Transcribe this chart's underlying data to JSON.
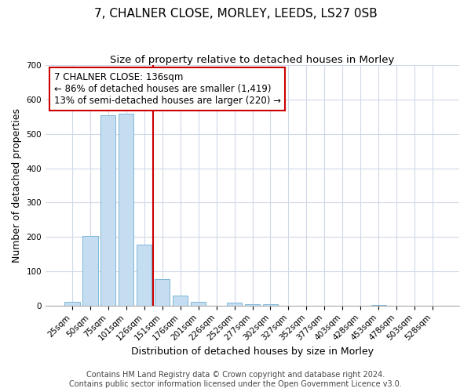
{
  "title": "7, CHALNER CLOSE, MORLEY, LEEDS, LS27 0SB",
  "subtitle": "Size of property relative to detached houses in Morley",
  "xlabel": "Distribution of detached houses by size in Morley",
  "ylabel": "Number of detached properties",
  "bar_labels": [
    "25sqm",
    "50sqm",
    "75sqm",
    "101sqm",
    "126sqm",
    "151sqm",
    "176sqm",
    "201sqm",
    "226sqm",
    "252sqm",
    "277sqm",
    "302sqm",
    "327sqm",
    "352sqm",
    "377sqm",
    "403sqm",
    "428sqm",
    "453sqm",
    "478sqm",
    "503sqm",
    "528sqm"
  ],
  "bar_values": [
    12,
    203,
    553,
    558,
    178,
    77,
    29,
    10,
    0,
    8,
    5,
    4,
    0,
    0,
    0,
    0,
    0,
    3,
    0,
    0,
    0
  ],
  "bar_color": "#c5ddf0",
  "bar_edge_color": "#7eb8d8",
  "annotation_box_text": "7 CHALNER CLOSE: 136sqm\n← 86% of detached houses are smaller (1,419)\n13% of semi-detached houses are larger (220) →",
  "annotation_box_color": "#ffffff",
  "annotation_box_edge_color": "#cc0000",
  "vline_color": "#cc0000",
  "ylim": [
    0,
    700
  ],
  "yticks": [
    0,
    100,
    200,
    300,
    400,
    500,
    600,
    700
  ],
  "footer_line1": "Contains HM Land Registry data © Crown copyright and database right 2024.",
  "footer_line2": "Contains public sector information licensed under the Open Government Licence v3.0.",
  "background_color": "#ffffff",
  "grid_color": "#d0d8e8",
  "title_fontsize": 11,
  "subtitle_fontsize": 9.5,
  "axis_label_fontsize": 9,
  "tick_fontsize": 7.5,
  "annotation_fontsize": 8.5,
  "footer_fontsize": 7
}
